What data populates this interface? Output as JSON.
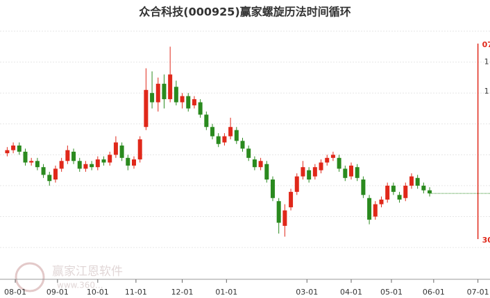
{
  "chart_data": {
    "type": "candlestick",
    "title": "众合科技(000925)赢家螺旋历法时间循环",
    "watermark": "赢家江恩软件",
    "watermark_url": "www.360...",
    "up_color": "#e0281a",
    "down_color": "#2a8a1e",
    "xlim": [
      -5,
      236
    ],
    "ylim": [
      6.8,
      14.45
    ],
    "gridlines": [
      7,
      8,
      9,
      10,
      11,
      12,
      13,
      14
    ],
    "xticks": [
      {
        "value": 0,
        "label": "08-01"
      },
      {
        "value": 21,
        "label": "09-01"
      },
      {
        "value": 41,
        "label": "10-01"
      },
      {
        "value": 60,
        "label": "11-01"
      },
      {
        "value": 83,
        "label": "12-01"
      },
      {
        "value": 105,
        "label": "01-01"
      },
      {
        "value": 145,
        "label": "03-01"
      },
      {
        "value": 167,
        "label": "04-01"
      },
      {
        "value": 187,
        "label": "05-01"
      },
      {
        "value": 208,
        "label": "06-01"
      },
      {
        "value": 230,
        "label": "07-01"
      }
    ],
    "candles": [
      [
        -4,
        10.05,
        10.25,
        9.95,
        10.15
      ],
      [
        -1,
        10.15,
        10.4,
        10.05,
        10.3
      ],
      [
        2,
        10.3,
        10.4,
        10.0,
        10.1
      ],
      [
        5,
        10.1,
        10.2,
        9.65,
        9.75
      ],
      [
        8,
        9.75,
        9.9,
        9.65,
        9.8
      ],
      [
        11,
        9.8,
        9.9,
        9.5,
        9.6
      ],
      [
        14,
        9.6,
        9.7,
        9.25,
        9.35
      ],
      [
        17,
        9.35,
        9.45,
        9.0,
        9.15
      ],
      [
        20,
        9.2,
        9.65,
        9.1,
        9.55
      ],
      [
        23,
        9.55,
        9.9,
        9.45,
        9.8
      ],
      [
        26,
        9.8,
        10.3,
        9.7,
        10.15
      ],
      [
        29,
        10.1,
        10.2,
        9.7,
        9.8
      ],
      [
        32,
        9.8,
        9.9,
        9.45,
        9.55
      ],
      [
        35,
        9.55,
        9.8,
        9.45,
        9.7
      ],
      [
        38,
        9.7,
        9.8,
        9.5,
        9.6
      ],
      [
        41,
        9.6,
        9.95,
        9.5,
        9.85
      ],
      [
        44,
        9.85,
        9.95,
        9.65,
        9.75
      ],
      [
        47,
        9.75,
        10.1,
        9.65,
        10.0
      ],
      [
        50,
        10.0,
        10.6,
        9.9,
        10.4
      ],
      [
        53,
        10.3,
        10.4,
        9.8,
        9.9
      ],
      [
        56,
        9.9,
        10.0,
        9.5,
        9.65
      ],
      [
        59,
        9.65,
        9.95,
        9.55,
        9.85
      ],
      [
        62,
        9.85,
        10.6,
        9.75,
        10.5
      ],
      [
        65,
        10.9,
        12.8,
        10.8,
        12.1
      ],
      [
        68,
        12.0,
        12.7,
        11.5,
        11.7
      ],
      [
        71,
        11.7,
        12.5,
        11.4,
        12.3
      ],
      [
        74,
        12.3,
        12.6,
        11.5,
        11.8
      ],
      [
        77,
        11.8,
        13.5,
        11.7,
        12.6
      ],
      [
        80,
        12.2,
        12.4,
        11.6,
        11.7
      ],
      [
        83,
        11.7,
        12.0,
        11.5,
        11.9
      ],
      [
        86,
        11.9,
        12.0,
        11.4,
        11.5
      ],
      [
        89,
        11.6,
        11.9,
        11.5,
        11.8
      ],
      [
        92,
        11.7,
        11.8,
        11.2,
        11.3
      ],
      [
        95,
        11.3,
        11.4,
        10.8,
        10.9
      ],
      [
        98,
        10.9,
        11.0,
        10.5,
        10.6
      ],
      [
        101,
        10.6,
        10.7,
        10.25,
        10.35
      ],
      [
        104,
        10.4,
        10.7,
        10.3,
        10.6
      ],
      [
        107,
        10.6,
        11.2,
        10.5,
        10.9
      ],
      [
        110,
        10.8,
        10.9,
        10.35,
        10.45
      ],
      [
        113,
        10.45,
        10.55,
        10.1,
        10.2
      ],
      [
        116,
        10.2,
        10.3,
        9.8,
        9.9
      ],
      [
        119,
        9.85,
        9.95,
        9.5,
        9.6
      ],
      [
        122,
        9.6,
        9.9,
        9.5,
        9.8
      ],
      [
        125,
        9.7,
        9.8,
        9.1,
        9.2
      ],
      [
        128,
        9.2,
        9.3,
        8.5,
        8.6
      ],
      [
        131,
        8.5,
        8.6,
        7.45,
        7.8
      ],
      [
        134,
        7.7,
        8.4,
        7.35,
        8.2
      ],
      [
        137,
        8.3,
        8.9,
        8.2,
        8.8
      ],
      [
        140,
        8.8,
        9.4,
        8.7,
        9.3
      ],
      [
        143,
        9.3,
        9.8,
        9.2,
        9.6
      ],
      [
        146,
        9.5,
        9.6,
        9.1,
        9.2
      ],
      [
        149,
        9.3,
        9.7,
        9.2,
        9.6
      ],
      [
        152,
        9.5,
        9.85,
        9.4,
        9.75
      ],
      [
        155,
        9.75,
        10.0,
        9.65,
        9.9
      ],
      [
        158,
        9.9,
        10.1,
        9.8,
        10.0
      ],
      [
        161,
        9.9,
        10.0,
        9.45,
        9.55
      ],
      [
        164,
        9.55,
        9.65,
        9.15,
        9.25
      ],
      [
        167,
        9.3,
        9.75,
        9.2,
        9.65
      ],
      [
        170,
        9.6,
        9.7,
        9.15,
        9.25
      ],
      [
        173,
        9.2,
        9.3,
        8.6,
        8.7
      ],
      [
        176,
        8.6,
        8.7,
        7.75,
        7.9
      ],
      [
        179,
        8.0,
        8.5,
        7.9,
        8.4
      ],
      [
        182,
        8.4,
        8.65,
        8.3,
        8.55
      ],
      [
        185,
        8.55,
        9.1,
        8.45,
        9.0
      ],
      [
        188,
        9.0,
        9.1,
        8.7,
        8.8
      ],
      [
        191,
        8.7,
        8.8,
        8.45,
        8.55
      ],
      [
        194,
        8.6,
        9.1,
        8.5,
        9.0
      ],
      [
        197,
        9.0,
        9.4,
        8.9,
        9.3
      ],
      [
        200,
        9.25,
        9.35,
        8.9,
        9.0
      ],
      [
        203,
        9.0,
        9.1,
        8.75,
        8.85
      ],
      [
        206,
        8.85,
        8.95,
        8.65,
        8.75
      ]
    ],
    "flat_line": {
      "from": 206,
      "to": 236,
      "value": 8.75,
      "color": "#2a8a1e"
    },
    "cycle_line": {
      "x": 230,
      "top": 13.6,
      "bottom": 7.27,
      "color": "#e0281a",
      "top_label": "07",
      "bottom_label": "30",
      "side_labels": [
        {
          "value": 13.0,
          "label": "1"
        },
        {
          "value": 12.05,
          "label": "1"
        }
      ]
    }
  }
}
